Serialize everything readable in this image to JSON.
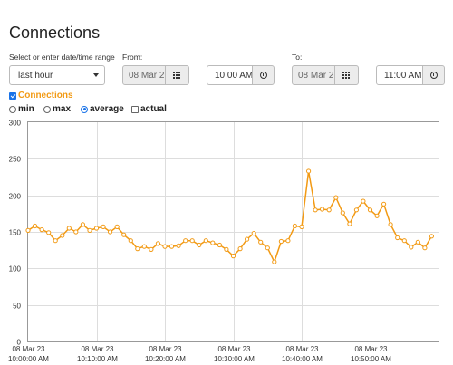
{
  "page": {
    "title": "Connections"
  },
  "range": {
    "label": "Select or enter date/time range",
    "selected": "last hour"
  },
  "from": {
    "label": "From:",
    "date": "08 Mar 2",
    "time": "10:00 AM"
  },
  "to": {
    "label": "To:",
    "date": "08 Mar 2",
    "time": "11:00 AM"
  },
  "series_toggle": {
    "label": "Connections",
    "checked": true
  },
  "options": [
    {
      "label": "min",
      "type": "radio",
      "checked": false
    },
    {
      "label": "max",
      "type": "radio",
      "checked": false
    },
    {
      "label": "average",
      "type": "radio",
      "checked": true
    },
    {
      "label": "actual",
      "type": "checkbox",
      "checked": false
    }
  ],
  "colors": {
    "series": "#f29a14",
    "accent": "#1a73e8",
    "grid": "#dddddd"
  },
  "chart_data": {
    "type": "line",
    "ylim": [
      0,
      300
    ],
    "yticks": [
      0,
      50,
      100,
      150,
      200,
      250,
      300
    ],
    "x_minutes": [
      0,
      60
    ],
    "xtick_labels": [
      {
        "minute": 0,
        "date": "08 Mar 23",
        "time": "10:00:00 AM"
      },
      {
        "minute": 10,
        "date": "08 Mar 23",
        "time": "10:10:00 AM"
      },
      {
        "minute": 20,
        "date": "08 Mar 23",
        "time": "10:20:00 AM"
      },
      {
        "minute": 30,
        "date": "08 Mar 23",
        "time": "10:30:00 AM"
      },
      {
        "minute": 40,
        "date": "08 Mar 23",
        "time": "10:40:00 AM"
      },
      {
        "minute": 50,
        "date": "08 Mar 23",
        "time": "10:50:00 AM"
      }
    ],
    "grid": true,
    "series": [
      {
        "values": [
          152,
          158,
          153,
          149,
          138,
          145,
          155,
          150,
          160,
          152,
          155,
          157,
          150,
          157,
          146,
          138,
          127,
          130,
          126,
          134,
          130,
          130,
          131,
          138,
          138,
          132,
          138,
          135,
          132,
          126,
          117,
          127,
          140,
          148,
          136,
          128,
          109,
          137,
          138,
          158,
          157,
          233,
          180,
          181,
          180,
          197,
          176,
          161,
          180,
          192,
          180,
          172,
          188,
          160,
          142,
          138,
          129,
          136,
          128,
          144
        ],
        "x_start": 0,
        "x_step": 1.0
      }
    ]
  }
}
